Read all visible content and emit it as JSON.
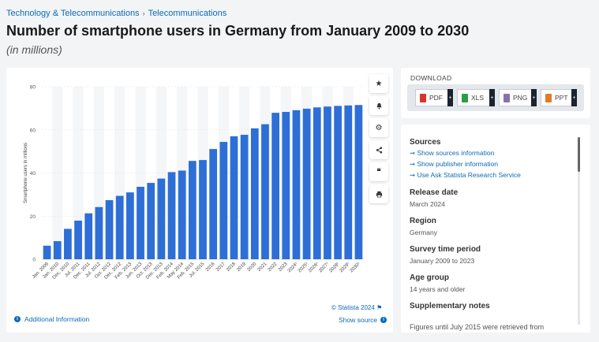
{
  "breadcrumb": {
    "item1": "Technology & Telecommunications",
    "item2": "Telecommunications"
  },
  "title": "Number of smartphone users in Germany from January 2009 to 2030",
  "subtitle": "(in millions)",
  "toolbar": {
    "icons": [
      "star-icon",
      "bell-icon",
      "gear-icon",
      "share-icon",
      "quote-icon",
      "print-icon"
    ]
  },
  "chart_data": {
    "type": "bar",
    "categories": [
      "Jan. 2009",
      "Jan. 2010",
      "Dec. 2010",
      "Jul. 2011",
      "Dec. 2011",
      "Jul. 2012",
      "Oct. 2012",
      "Dec. 2012",
      "Feb. 2013",
      "Jun. 2013",
      "Oct. 2013",
      "Dec. 2013",
      "Feb. 2014",
      "May 2014",
      "Feb. 2015",
      "Jul. 2015",
      "2016",
      "2017",
      "2018",
      "2019",
      "2020",
      "2021",
      "2022",
      "2023",
      "2024¹",
      "2025¹",
      "2026¹",
      "2027¹",
      "2028¹",
      "2029¹",
      "2030¹"
    ],
    "values": [
      6.3,
      8.4,
      14.1,
      17.9,
      21.3,
      24.2,
      27.4,
      29.4,
      31.0,
      33.6,
      35.4,
      37.4,
      40.4,
      41.1,
      45.6,
      46.0,
      51.1,
      54.4,
      57.0,
      57.7,
      60.7,
      62.6,
      67.9,
      68.3,
      69.1,
      69.8,
      70.4,
      70.8,
      71.1,
      71.3,
      71.5
    ],
    "ylabel": "Smartphone users in millions",
    "ylim": [
      0,
      80
    ],
    "yticks": [
      0,
      20,
      40,
      60,
      80
    ],
    "bar_color": "#2d6fd6",
    "grid": true
  },
  "credit": "© Statista 2024",
  "additional_info": "Additional Information",
  "show_source": "Show source",
  "download": {
    "title": "DOWNLOAD",
    "buttons": [
      {
        "label": "PDF",
        "color": "#d9342b"
      },
      {
        "label": "XLS",
        "color": "#2e9b48"
      },
      {
        "label": "PNG",
        "color": "#8a6fb0"
      },
      {
        "label": "PPT",
        "color": "#e07b2a"
      }
    ]
  },
  "details": {
    "sources_head": "Sources",
    "links": [
      "Show sources information",
      "Show publisher information",
      "Use Ask Statista Research Service"
    ],
    "release_head": "Release date",
    "release_val": "March 2024",
    "region_head": "Region",
    "region_val": "Germany",
    "period_head": "Survey time period",
    "period_val": "January 2009 to 2023",
    "age_head": "Age group",
    "age_val": "14 years and older",
    "notes_head": "Supplementary notes",
    "notes_val": "Figures until July 2015 were retrieved from"
  }
}
